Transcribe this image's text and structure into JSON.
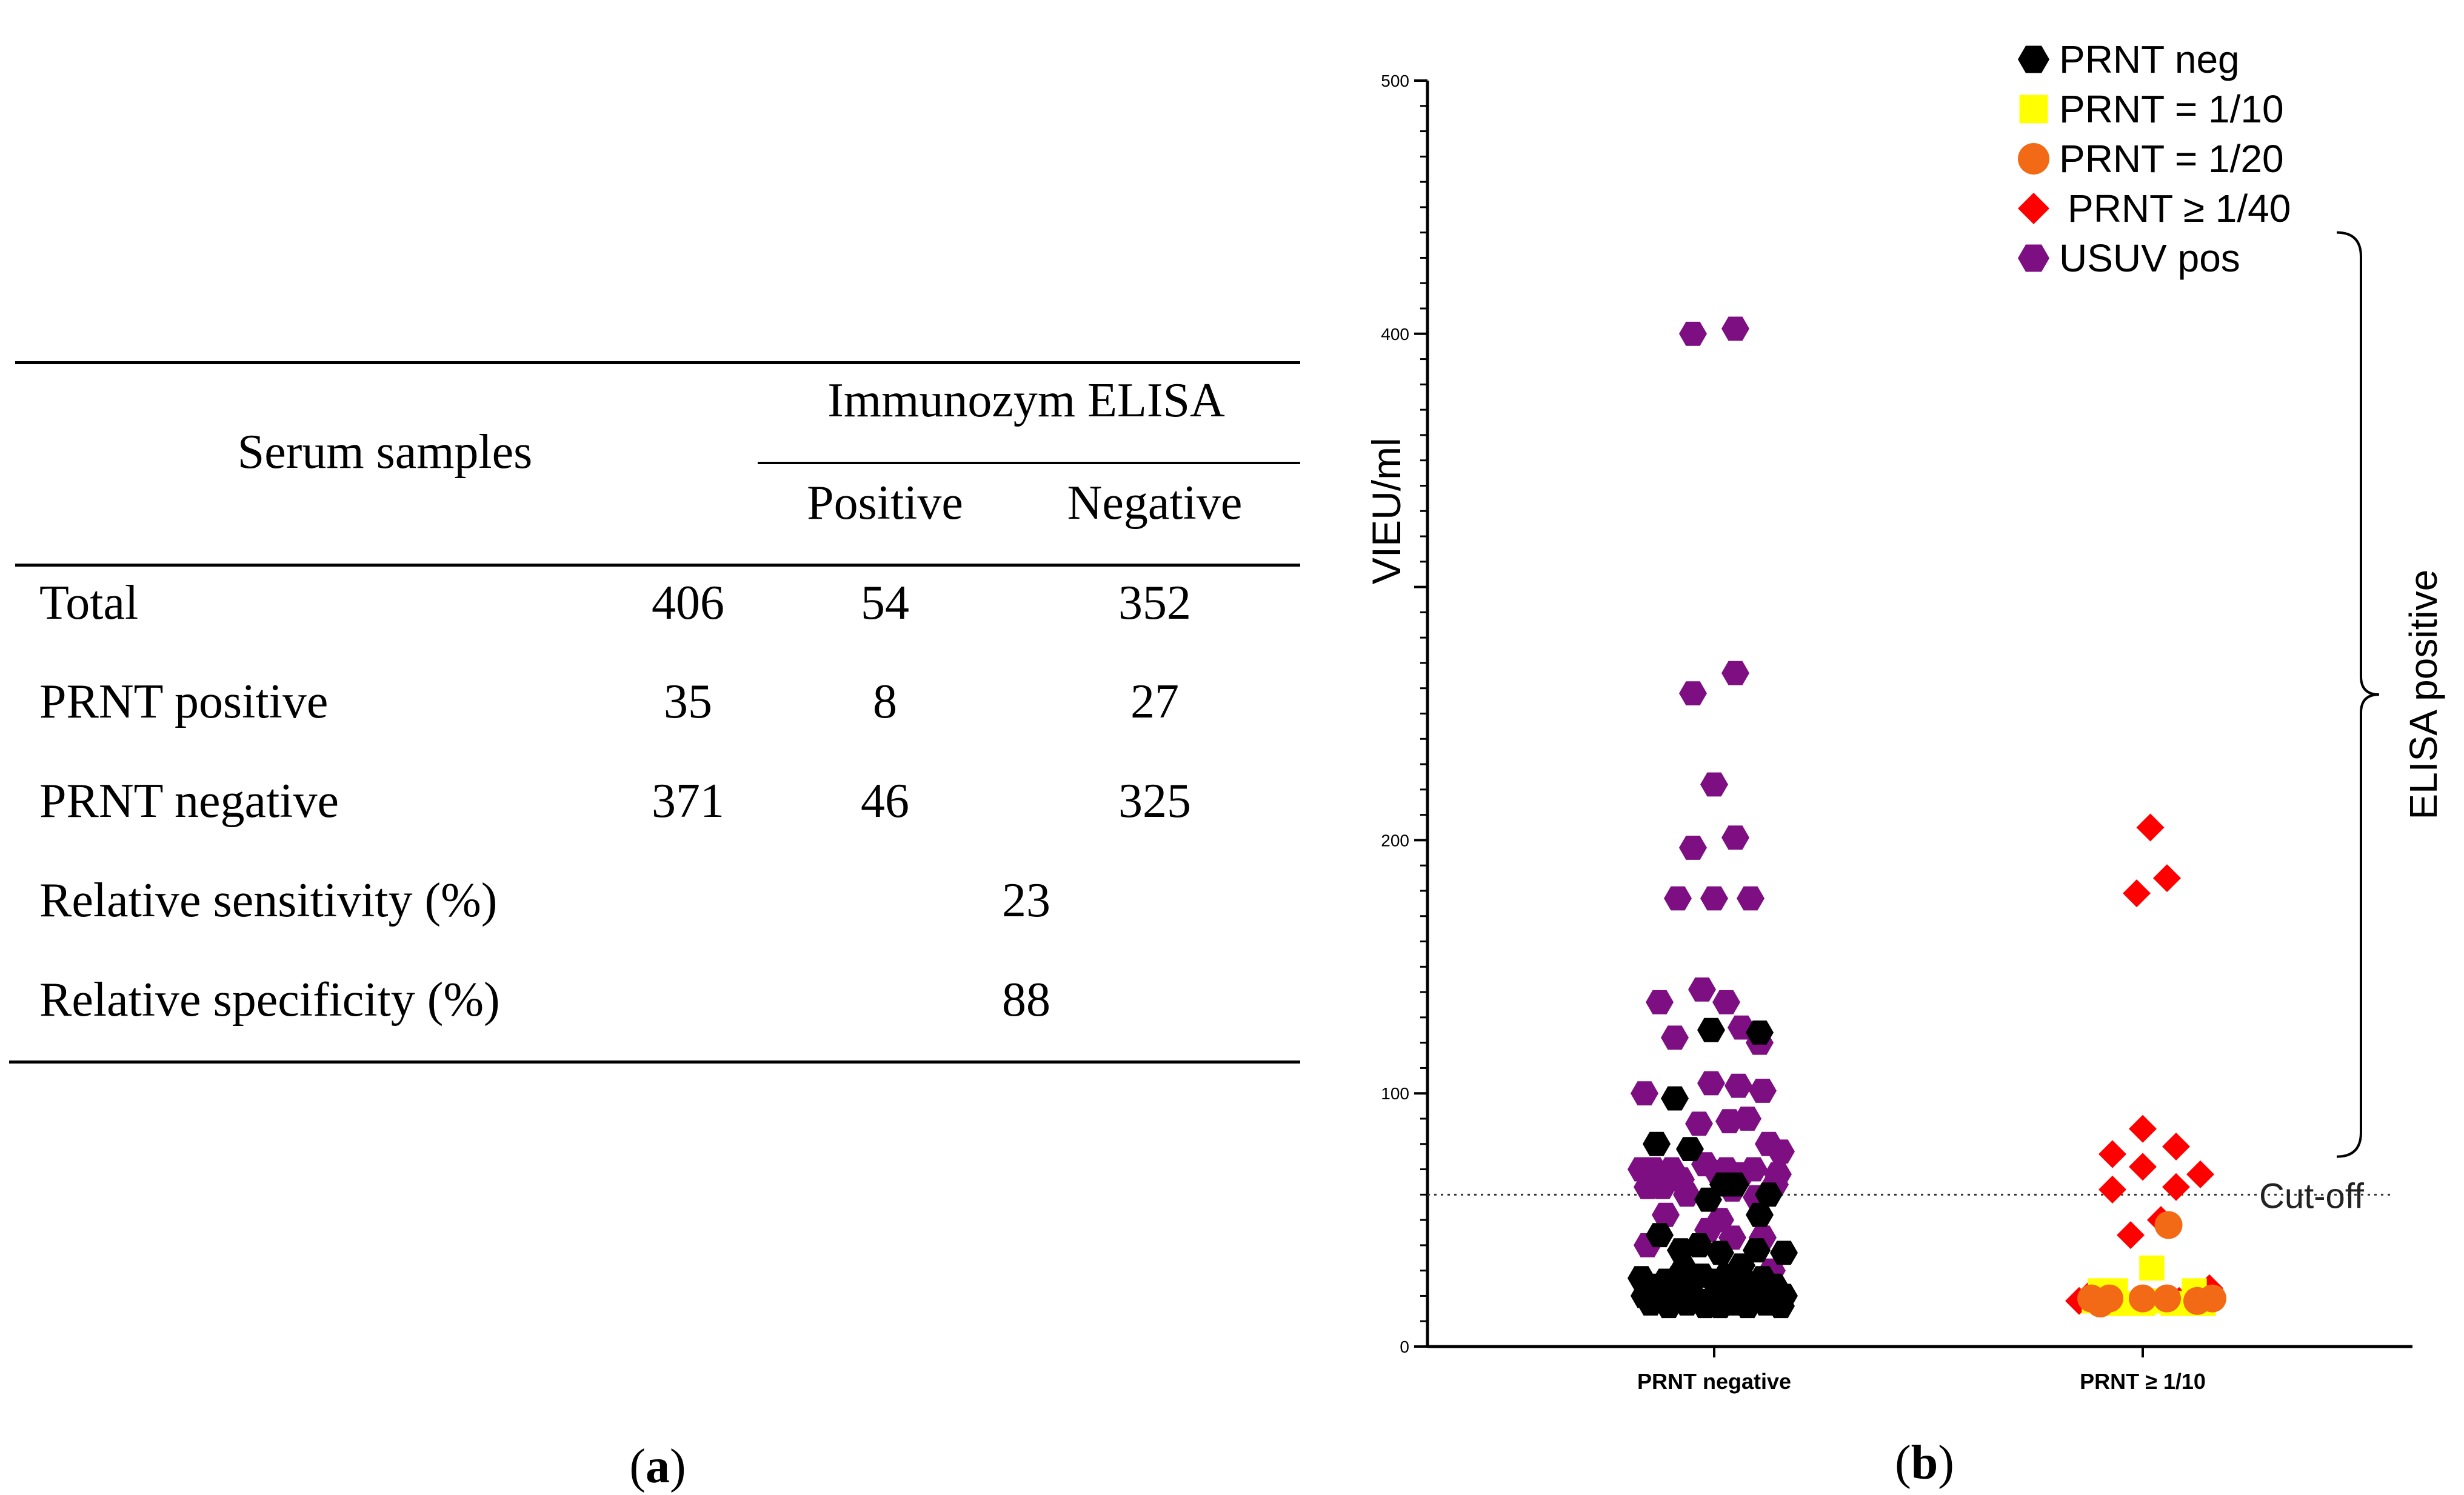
{
  "table": {
    "header_left": "Serum samples",
    "header_group": "Immunozym ELISA",
    "col_positive": "Positive",
    "col_negative": "Negative",
    "rows": [
      {
        "label": "Total",
        "count": "406",
        "positive": "54",
        "negative": "352"
      },
      {
        "label": "PRNT positive",
        "count": "35",
        "positive": "8",
        "negative": "27"
      },
      {
        "label": "PRNT negative",
        "count": "371",
        "positive": "46",
        "negative": "325"
      }
    ],
    "sensitivity": {
      "label": "Relative sensitivity (%)",
      "value": "23"
    },
    "specificity": {
      "label": "Relative specificity (%)",
      "value": "88"
    }
  },
  "captions": {
    "a": {
      "open": "(",
      "letter": "a",
      "close": ")"
    },
    "b": {
      "open": "(",
      "letter": "b",
      "close": ")"
    }
  },
  "chart_data": {
    "type": "scatter",
    "title": "",
    "xlabel": "",
    "ylabel": "VIEU/ml",
    "ylim": [
      0,
      500
    ],
    "yticks": [
      0,
      100,
      200,
      400,
      500
    ],
    "categories": [
      "PRNT negative",
      "PRNT ≥ 1/10"
    ],
    "cutoff": {
      "value": 60,
      "label": "Cut-off"
    },
    "bracket_label": "ELISA positive",
    "bracket_range": [
      75,
      440
    ],
    "legend": [
      {
        "name": "PRNT neg",
        "marker": "hexagon",
        "color": "#000000"
      },
      {
        "name": "PRNT = 1/10",
        "marker": "square",
        "color": "#ffff00"
      },
      {
        "name": "PRNT = 1/20",
        "marker": "circle",
        "color": "#f26a16"
      },
      {
        "name": "PRNT ≥ 1/40",
        "marker": "diamond",
        "color": "#ff0000"
      },
      {
        "name": "USUV pos",
        "marker": "hexagon",
        "color": "#7e0f82"
      }
    ],
    "series": [
      {
        "name": "USUV pos",
        "category": "PRNT negative",
        "points": [
          [
            -0.14,
            400
          ],
          [
            0.14,
            402
          ],
          [
            -0.14,
            258
          ],
          [
            0.14,
            266
          ],
          [
            0.0,
            222
          ],
          [
            -0.14,
            197
          ],
          [
            0.14,
            201
          ],
          [
            -0.24,
            177
          ],
          [
            0.0,
            177
          ],
          [
            0.24,
            177
          ],
          [
            -0.36,
            136
          ],
          [
            -0.08,
            141
          ],
          [
            0.08,
            136
          ],
          [
            0.18,
            126
          ],
          [
            -0.26,
            122
          ],
          [
            0.3,
            120
          ],
          [
            -0.02,
            104
          ],
          [
            0.16,
            103
          ],
          [
            0.32,
            101
          ],
          [
            -0.46,
            100
          ],
          [
            -0.1,
            88
          ],
          [
            0.1,
            89
          ],
          [
            0.22,
            90
          ],
          [
            -0.4,
            70
          ],
          [
            -0.28,
            70
          ],
          [
            -0.22,
            66
          ],
          [
            -0.06,
            72
          ],
          [
            0.02,
            69
          ],
          [
            0.08,
            70
          ],
          [
            0.18,
            68
          ],
          [
            0.26,
            70
          ],
          [
            0.42,
            68
          ],
          [
            -0.48,
            70
          ],
          [
            -0.44,
            63
          ],
          [
            -0.34,
            63
          ],
          [
            -0.18,
            60
          ],
          [
            0.12,
            62
          ],
          [
            0.28,
            59
          ],
          [
            0.4,
            64
          ],
          [
            0.44,
            77
          ],
          [
            0.36,
            80
          ],
          [
            -0.04,
            46
          ],
          [
            0.04,
            50
          ],
          [
            -0.32,
            52
          ],
          [
            0.32,
            43
          ],
          [
            -0.44,
            40
          ],
          [
            0.12,
            43
          ],
          [
            0.38,
            30
          ]
        ]
      },
      {
        "name": "PRNT neg",
        "category": "PRNT negative",
        "points": [
          [
            -0.38,
            80
          ],
          [
            -0.16,
            78
          ],
          [
            -0.26,
            98
          ],
          [
            -0.02,
            125
          ],
          [
            0.3,
            124
          ],
          [
            -0.04,
            58
          ],
          [
            0.06,
            64
          ],
          [
            0.14,
            64
          ],
          [
            0.3,
            52
          ],
          [
            0.36,
            60
          ],
          [
            -0.36,
            44
          ],
          [
            -0.22,
            38
          ],
          [
            -0.1,
            40
          ],
          [
            0.04,
            37
          ],
          [
            0.28,
            38
          ],
          [
            0.46,
            37
          ],
          [
            -0.48,
            27
          ],
          [
            -0.4,
            24
          ],
          [
            -0.32,
            26
          ],
          [
            -0.24,
            27
          ],
          [
            -0.16,
            24
          ],
          [
            -0.08,
            28
          ],
          [
            0.0,
            26
          ],
          [
            0.08,
            28
          ],
          [
            0.16,
            26
          ],
          [
            0.24,
            25
          ],
          [
            0.32,
            27
          ],
          [
            0.4,
            24
          ],
          [
            -0.46,
            20
          ],
          [
            -0.36,
            19
          ],
          [
            -0.26,
            21
          ],
          [
            -0.14,
            20
          ],
          [
            -0.04,
            18
          ],
          [
            0.06,
            20
          ],
          [
            0.16,
            19
          ],
          [
            0.26,
            21
          ],
          [
            0.36,
            19
          ],
          [
            0.46,
            20
          ],
          [
            -0.42,
            17
          ],
          [
            -0.3,
            16
          ],
          [
            -0.18,
            17
          ],
          [
            -0.06,
            16
          ],
          [
            0.04,
            16
          ],
          [
            0.14,
            17
          ],
          [
            0.22,
            16
          ],
          [
            0.34,
            17
          ],
          [
            0.44,
            16
          ],
          [
            -0.2,
            31
          ],
          [
            0.18,
            32
          ],
          [
            0.1,
            22
          ]
        ]
      },
      {
        "name": "PRNT ≥ 1/40",
        "category": "PRNT ≥ 1/10",
        "points": [
          [
            -0.04,
            179
          ],
          [
            0.05,
            205
          ],
          [
            0.16,
            185
          ],
          [
            -0.2,
            76
          ],
          [
            0.0,
            86
          ],
          [
            0.22,
            79
          ],
          [
            0.38,
            68
          ],
          [
            -0.2,
            62
          ],
          [
            0.0,
            71
          ],
          [
            0.22,
            63
          ],
          [
            -0.08,
            44
          ],
          [
            0.12,
            50
          ],
          [
            -0.42,
            18
          ],
          [
            -0.36,
            20
          ],
          [
            0.24,
            18
          ],
          [
            0.3,
            18
          ],
          [
            0.44,
            23
          ]
        ]
      },
      {
        "name": "PRNT = 1/10",
        "category": "PRNT ≥ 1/10",
        "points": [
          [
            -0.28,
            22
          ],
          [
            -0.22,
            17
          ],
          [
            -0.1,
            17
          ],
          [
            0.0,
            17
          ],
          [
            0.06,
            31
          ],
          [
            0.1,
            18
          ],
          [
            0.2,
            17
          ],
          [
            0.3,
            17
          ],
          [
            0.34,
            22
          ],
          [
            0.4,
            17
          ],
          [
            -0.32,
            18
          ],
          [
            -0.18,
            22
          ]
        ]
      },
      {
        "name": "PRNT = 1/20",
        "category": "PRNT ≥ 1/10",
        "points": [
          [
            -0.34,
            19
          ],
          [
            -0.28,
            17
          ],
          [
            -0.22,
            19
          ],
          [
            0.0,
            19
          ],
          [
            0.16,
            19
          ],
          [
            0.36,
            18
          ],
          [
            0.46,
            19
          ],
          [
            0.17,
            48
          ]
        ]
      }
    ]
  }
}
